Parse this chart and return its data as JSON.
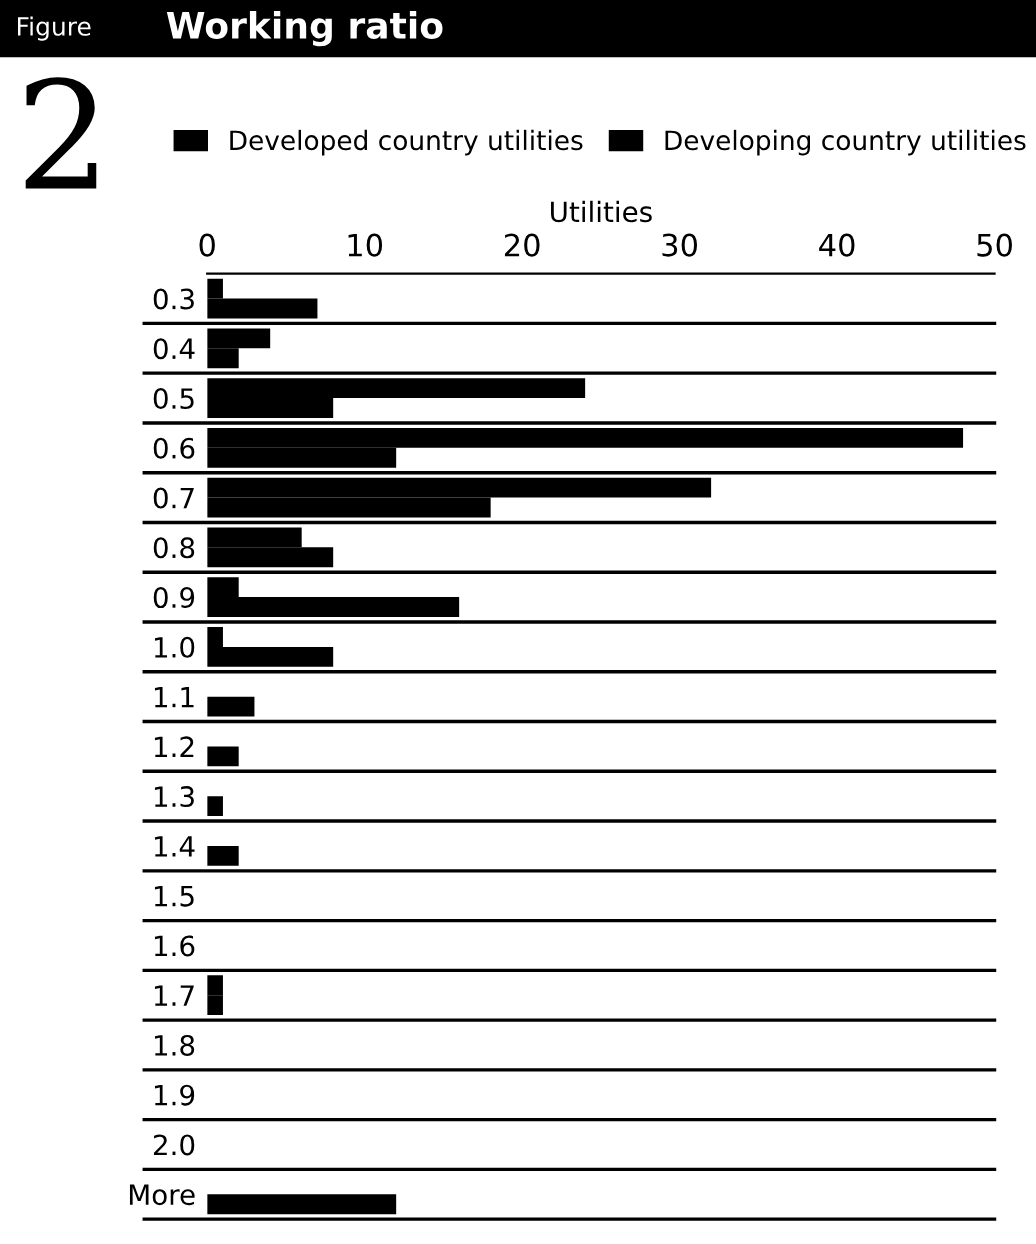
{
  "chart_data": {
    "type": "bar",
    "orientation": "horizontal",
    "title": "Working ratio",
    "annotations": [
      "Figure",
      "2"
    ],
    "xlabel": "Utilities",
    "categories": [
      "0.3",
      "0.4",
      "0.5",
      "0.6",
      "0.7",
      "0.8",
      "0.9",
      "1.0",
      "1.1",
      "1.2",
      "1.3",
      "1.4",
      "1.5",
      "1.6",
      "1.7",
      "1.8",
      "1.9",
      "2.0",
      "More"
    ],
    "series": [
      {
        "name": "Developed country utilities",
        "color": "#000000",
        "values": [
          1,
          4,
          24,
          48,
          32,
          6,
          2,
          1,
          0,
          0,
          0,
          0,
          0,
          0,
          1,
          0,
          0,
          0,
          0
        ]
      },
      {
        "name": "Developing country utilities",
        "color": "#000000",
        "values": [
          7,
          2,
          8,
          12,
          18,
          8,
          16,
          8,
          3,
          2,
          1,
          2,
          0,
          0,
          1,
          0,
          0,
          0,
          12
        ]
      }
    ],
    "xlim": [
      0,
      50
    ],
    "xticks": [
      0,
      10,
      20,
      30,
      40,
      50
    ],
    "grid": "y",
    "legend": "top"
  }
}
